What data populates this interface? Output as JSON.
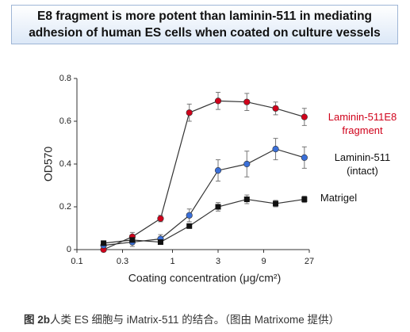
{
  "title": [
    "E8 fragment is more potent than laminin-511 in mediating",
    "adhesion of human ES cells when coated on culture vessels"
  ],
  "chart_data": {
    "type": "line",
    "xlabel": "Coating concentration (μg/cm²)",
    "ylabel": "OD570",
    "x": [
      0.19,
      0.38,
      0.75,
      1.5,
      3,
      6,
      12,
      24
    ],
    "xscale": "log",
    "xlim": [
      0.1,
      27
    ],
    "xticks": [
      0.1,
      0.3,
      1,
      3,
      9,
      27
    ],
    "ylim": [
      0,
      0.8
    ],
    "yticks": [
      0,
      0.2,
      0.4,
      0.6,
      0.8
    ],
    "series": [
      {
        "name": "Laminin-511E8 fragment",
        "color": "#d0021b",
        "marker": "circle",
        "values": [
          0,
          0.06,
          0.145,
          0.64,
          0.695,
          0.69,
          0.66,
          0.62
        ],
        "errors": [
          0.01,
          0.02,
          0.015,
          0.04,
          0.04,
          0.04,
          0.03,
          0.04
        ]
      },
      {
        "name": "Laminin-511 (intact)",
        "color": "#3a6fd8",
        "marker": "circle",
        "values": [
          0.02,
          0.035,
          0.05,
          0.16,
          0.37,
          0.4,
          0.47,
          0.43
        ],
        "errors": [
          0.01,
          0.02,
          0.02,
          0.03,
          0.05,
          0.06,
          0.05,
          0.05
        ]
      },
      {
        "name": "Matrigel",
        "color": "#111111",
        "marker": "square",
        "values": [
          0.03,
          0.045,
          0.035,
          0.11,
          0.2,
          0.235,
          0.215,
          0.235
        ],
        "errors": [
          0.01,
          0.01,
          0.01,
          0.01,
          0.02,
          0.02,
          0.015,
          0.015
        ]
      }
    ]
  },
  "caption": {
    "label": "图 2b",
    "text": "人类 ES 细胞与 iMatrix-511 的结合。（图由 Matrixome 提供）"
  }
}
